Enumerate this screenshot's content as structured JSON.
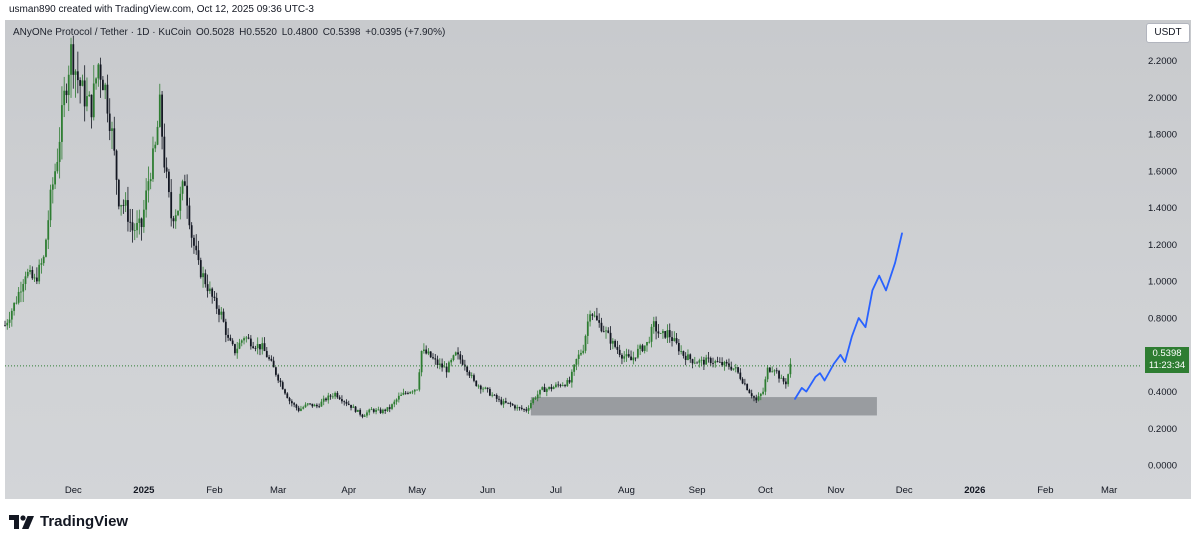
{
  "header": {
    "attribution": "usman890 created with TradingView.com, Oct 12, 2025 09:36 UTC-3"
  },
  "legend": {
    "symbol": "ANyONe Protocol / Tether · 1D · KuCoin",
    "open": "O0.5028",
    "high": "H0.5520",
    "low": "L0.4800",
    "close": "C0.5398",
    "change": "+0.0395 (+7.90%)"
  },
  "currency": "USDT",
  "price_badge": {
    "price": "0.5398",
    "countdown": "11:23:34",
    "color": "#2e7d32"
  },
  "footer": {
    "brand": "TradingView",
    "logo_icon": "tradingview-logo-icon"
  },
  "colors": {
    "up": "#2e7d32",
    "down": "#131722",
    "projection": "#2962ff",
    "zone": "#8f9296"
  },
  "chart_data": {
    "type": "candlestick",
    "title": "",
    "symbol": "ANyONe Protocol / Tether",
    "interval": "1D",
    "exchange": "KuCoin",
    "y_axis": {
      "ticks": [
        "2.2000",
        "2.0000",
        "1.8000",
        "1.6000",
        "1.4000",
        "1.2000",
        "1.0000",
        "0.8000",
        "0.6000",
        "0.4000",
        "0.2000",
        "0.0000"
      ],
      "range": [
        -0.07,
        2.42
      ]
    },
    "x_axis": {
      "ticks": [
        "Dec",
        "2025",
        "Feb",
        "Mar",
        "Apr",
        "May",
        "Jun",
        "Jul",
        "Aug",
        "Sep",
        "Oct",
        "Nov",
        "Dec",
        "2026",
        "Feb",
        "Mar"
      ],
      "range": [
        "2024-11-01",
        "2026-03-15"
      ]
    },
    "last_price": 0.5398,
    "grid": false,
    "price_path": [
      [
        "2024-11-01",
        0.76
      ],
      [
        "2024-11-06",
        0.9
      ],
      [
        "2024-11-10",
        1.05
      ],
      [
        "2024-11-14",
        1.0
      ],
      [
        "2024-11-18",
        1.12
      ],
      [
        "2024-11-21",
        1.45
      ],
      [
        "2024-11-24",
        1.68
      ],
      [
        "2024-11-27",
        2.0
      ],
      [
        "2024-11-30",
        2.25
      ],
      [
        "2024-12-03",
        2.1
      ],
      [
        "2024-12-06",
        2.0
      ],
      [
        "2024-12-09",
        1.95
      ],
      [
        "2024-12-12",
        2.18
      ],
      [
        "2024-12-15",
        2.05
      ],
      [
        "2024-12-18",
        1.8
      ],
      [
        "2024-12-21",
        1.45
      ],
      [
        "2024-12-24",
        1.4
      ],
      [
        "2024-12-27",
        1.28
      ],
      [
        "2024-12-31",
        1.3
      ],
      [
        "2025-01-03",
        1.55
      ],
      [
        "2025-01-06",
        1.72
      ],
      [
        "2025-01-08",
        1.95
      ],
      [
        "2025-01-10",
        1.65
      ],
      [
        "2025-01-13",
        1.35
      ],
      [
        "2025-01-16",
        1.4
      ],
      [
        "2025-01-19",
        1.55
      ],
      [
        "2025-01-22",
        1.25
      ],
      [
        "2025-01-25",
        1.08
      ],
      [
        "2025-01-28",
        1.0
      ],
      [
        "2025-02-01",
        0.88
      ],
      [
        "2025-02-04",
        0.82
      ],
      [
        "2025-02-07",
        0.68
      ],
      [
        "2025-02-10",
        0.62
      ],
      [
        "2025-02-14",
        0.7
      ],
      [
        "2025-02-18",
        0.66
      ],
      [
        "2025-02-22",
        0.64
      ],
      [
        "2025-02-26",
        0.55
      ],
      [
        "2025-03-02",
        0.45
      ],
      [
        "2025-03-06",
        0.35
      ],
      [
        "2025-03-10",
        0.3
      ],
      [
        "2025-03-14",
        0.33
      ],
      [
        "2025-03-18",
        0.32
      ],
      [
        "2025-03-22",
        0.36
      ],
      [
        "2025-03-26",
        0.39
      ],
      [
        "2025-03-30",
        0.35
      ],
      [
        "2025-04-03",
        0.31
      ],
      [
        "2025-04-07",
        0.27
      ],
      [
        "2025-04-11",
        0.3
      ],
      [
        "2025-04-15",
        0.29
      ],
      [
        "2025-04-19",
        0.31
      ],
      [
        "2025-04-23",
        0.37
      ],
      [
        "2025-04-27",
        0.4
      ],
      [
        "2025-05-01",
        0.42
      ],
      [
        "2025-05-03",
        0.62
      ],
      [
        "2025-05-06",
        0.6
      ],
      [
        "2025-05-10",
        0.55
      ],
      [
        "2025-05-14",
        0.52
      ],
      [
        "2025-05-18",
        0.6
      ],
      [
        "2025-05-22",
        0.55
      ],
      [
        "2025-05-26",
        0.45
      ],
      [
        "2025-05-30",
        0.42
      ],
      [
        "2025-06-03",
        0.38
      ],
      [
        "2025-06-07",
        0.34
      ],
      [
        "2025-06-11",
        0.33
      ],
      [
        "2025-06-14",
        0.31
      ],
      [
        "2025-06-18",
        0.3
      ],
      [
        "2025-06-21",
        0.36
      ],
      [
        "2025-06-25",
        0.41
      ],
      [
        "2025-06-29",
        0.42
      ],
      [
        "2025-07-03",
        0.44
      ],
      [
        "2025-07-07",
        0.45
      ],
      [
        "2025-07-10",
        0.57
      ],
      [
        "2025-07-13",
        0.64
      ],
      [
        "2025-07-16",
        0.85
      ],
      [
        "2025-07-19",
        0.78
      ],
      [
        "2025-07-22",
        0.74
      ],
      [
        "2025-07-26",
        0.66
      ],
      [
        "2025-07-30",
        0.6
      ],
      [
        "2025-08-03",
        0.57
      ],
      [
        "2025-08-06",
        0.62
      ],
      [
        "2025-08-10",
        0.66
      ],
      [
        "2025-08-13",
        0.76
      ],
      [
        "2025-08-16",
        0.7
      ],
      [
        "2025-08-19",
        0.72
      ],
      [
        "2025-08-22",
        0.67
      ],
      [
        "2025-08-26",
        0.6
      ],
      [
        "2025-08-30",
        0.57
      ],
      [
        "2025-09-03",
        0.56
      ],
      [
        "2025-09-07",
        0.57
      ],
      [
        "2025-09-11",
        0.55
      ],
      [
        "2025-09-15",
        0.54
      ],
      [
        "2025-09-18",
        0.52
      ],
      [
        "2025-09-21",
        0.46
      ],
      [
        "2025-09-24",
        0.4
      ],
      [
        "2025-09-27",
        0.35
      ],
      [
        "2025-09-30",
        0.4
      ],
      [
        "2025-10-02",
        0.52
      ],
      [
        "2025-10-05",
        0.53
      ],
      [
        "2025-10-08",
        0.46
      ],
      [
        "2025-10-10",
        0.45
      ],
      [
        "2025-10-12",
        0.54
      ]
    ],
    "support_zone": {
      "x_start": "2025-06-20",
      "x_end": "2025-11-19",
      "y_low": 0.27,
      "y_high": 0.37
    },
    "projection_path": [
      [
        "2025-10-14",
        0.36
      ],
      [
        "2025-10-17",
        0.42
      ],
      [
        "2025-10-19",
        0.4
      ],
      [
        "2025-10-23",
        0.48
      ],
      [
        "2025-10-25",
        0.5
      ],
      [
        "2025-10-27",
        0.46
      ],
      [
        "2025-10-31",
        0.55
      ],
      [
        "2025-11-03",
        0.6
      ],
      [
        "2025-11-05",
        0.56
      ],
      [
        "2025-11-08",
        0.7
      ],
      [
        "2025-11-11",
        0.8
      ],
      [
        "2025-11-14",
        0.75
      ],
      [
        "2025-11-17",
        0.95
      ],
      [
        "2025-11-20",
        1.03
      ],
      [
        "2025-11-23",
        0.95
      ],
      [
        "2025-11-27",
        1.1
      ],
      [
        "2025-11-30",
        1.26
      ]
    ]
  }
}
